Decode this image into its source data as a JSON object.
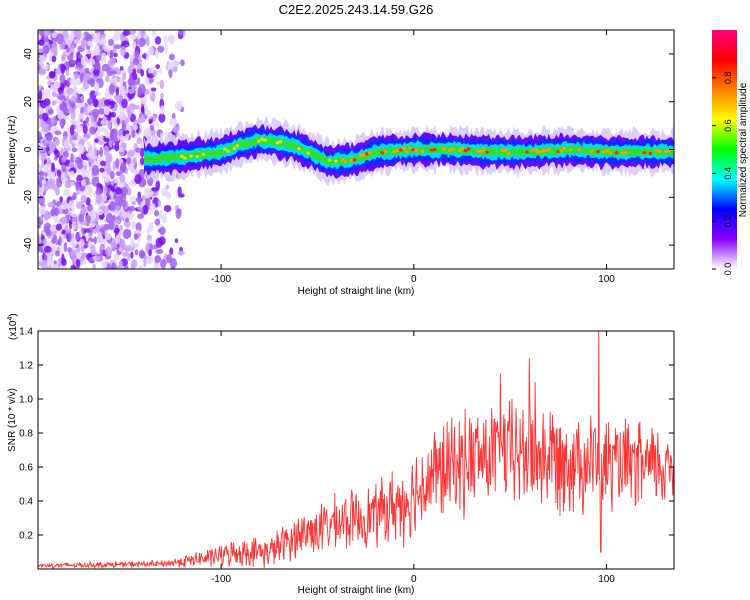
{
  "title": "C2E2.2025.243.14.59.G26",
  "chart_data": [
    {
      "type": "heatmap",
      "title": "C2E2.2025.243.14.59.G26",
      "xlabel": "Height of straight line (km)",
      "ylabel": "Frequency (Hz)",
      "xlim": [
        -195,
        135
      ],
      "ylim": [
        -50,
        50
      ],
      "x_ticks": [
        -100,
        0,
        100
      ],
      "y_ticks": [
        -40,
        -20,
        0,
        20,
        40
      ],
      "colorbar": {
        "label": "Normalized spectral amplitude",
        "range": [
          0,
          1
        ],
        "ticks": [
          0.0,
          0.2,
          0.4,
          0.6,
          0.8
        ],
        "colors": [
          "#ffffff",
          "#8a00ff",
          "#0000ff",
          "#00ffff",
          "#00ff00",
          "#ffff00",
          "#ff8000",
          "#ff0000",
          "#ff0080"
        ]
      },
      "ridge": {
        "x": [
          -140,
          -120,
          -100,
          -90,
          -80,
          -70,
          -60,
          -52,
          -45,
          -40,
          -30,
          -20,
          0,
          20,
          40,
          60,
          80,
          100,
          120,
          135
        ],
        "freq": [
          -4,
          -3,
          -1,
          2,
          4,
          3,
          1,
          -2,
          -5,
          -5,
          -4,
          -1,
          0,
          0,
          -1,
          -1,
          0,
          -1,
          -1,
          -1
        ]
      },
      "noise_region_x": [
        -195,
        -120
      ]
    },
    {
      "type": "line",
      "xlabel": "Height of straight line (km)",
      "ylabel": "SNR (10 * v/v)",
      "y_multiplier": "(x10",
      "y_multiplier_exp": "4",
      "xlim": [
        -195,
        135
      ],
      "ylim": [
        0,
        1.4
      ],
      "x_ticks": [
        -100,
        0,
        100
      ],
      "y_ticks": [
        0.2,
        0.4,
        0.6,
        0.8,
        1.0,
        1.2,
        1.4
      ],
      "y_tick_labels": [
        "0.2",
        "0.4",
        "0.6",
        "0.8",
        "1.0",
        "1.2",
        "1.4"
      ],
      "color": "#ff3333",
      "envelope": {
        "x": [
          -195,
          -130,
          -110,
          -90,
          -75,
          -60,
          -40,
          -20,
          -5,
          10,
          30,
          50,
          70,
          90,
          110,
          135
        ],
        "mean": [
          0.02,
          0.03,
          0.06,
          0.1,
          0.1,
          0.2,
          0.27,
          0.32,
          0.4,
          0.55,
          0.65,
          0.68,
          0.66,
          0.64,
          0.6,
          0.6
        ],
        "amp": [
          0.015,
          0.02,
          0.05,
          0.08,
          0.09,
          0.13,
          0.16,
          0.18,
          0.24,
          0.28,
          0.3,
          0.32,
          0.32,
          0.3,
          0.26,
          0.24
        ]
      },
      "peaks": [
        {
          "x": 96,
          "y": 1.41
        },
        {
          "x": 60,
          "y": 1.24
        },
        {
          "x": 63,
          "y": 1.1
        },
        {
          "x": 45,
          "y": 1.15
        },
        {
          "x": 97,
          "y": 0.1
        }
      ]
    }
  ]
}
